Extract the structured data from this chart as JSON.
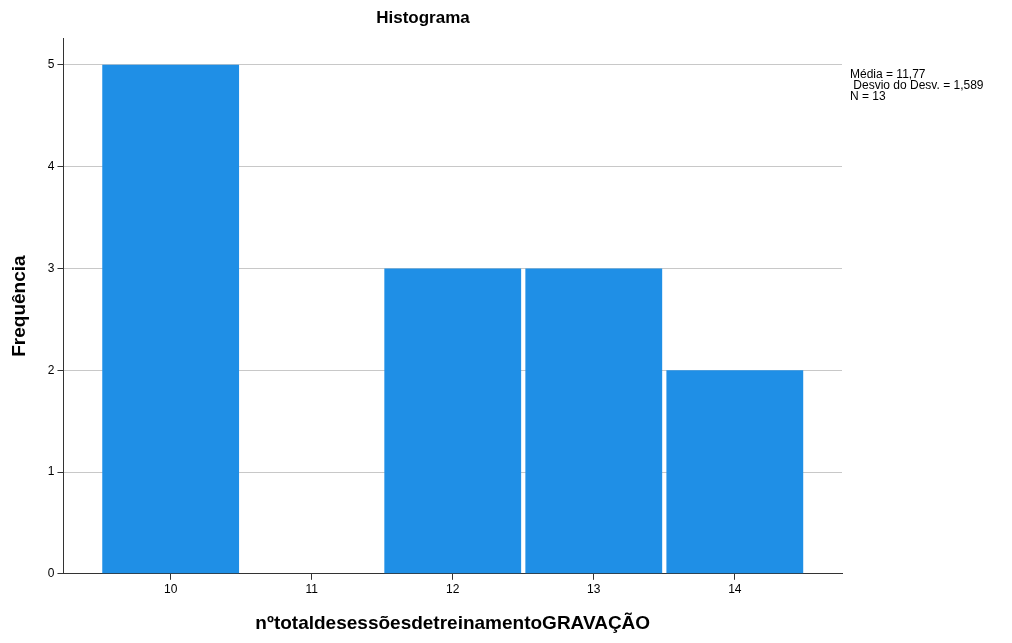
{
  "chart_data": {
    "type": "histogram",
    "title": "Histograma",
    "xlabel": "nºtotaldesessõesdetreinamentoGRAVAÇÃO",
    "ylabel": "Frequência",
    "bins": [
      9.5,
      10.5,
      11.5,
      12.5,
      13.5,
      14.5
    ],
    "values": [
      5,
      0,
      3,
      3,
      2
    ],
    "color": "#1f8fe6",
    "xlim": [
      9.24,
      14.76
    ],
    "xticks": [
      10,
      11,
      12,
      13,
      14
    ],
    "ylim": [
      0,
      5.26
    ],
    "yticks": [
      0,
      1,
      2,
      3,
      4,
      5
    ],
    "grid": "y",
    "legend": false,
    "annotations": [
      "Média = 11,77",
      " Desvio do Desv. = 1,589",
      "N = 13"
    ]
  }
}
